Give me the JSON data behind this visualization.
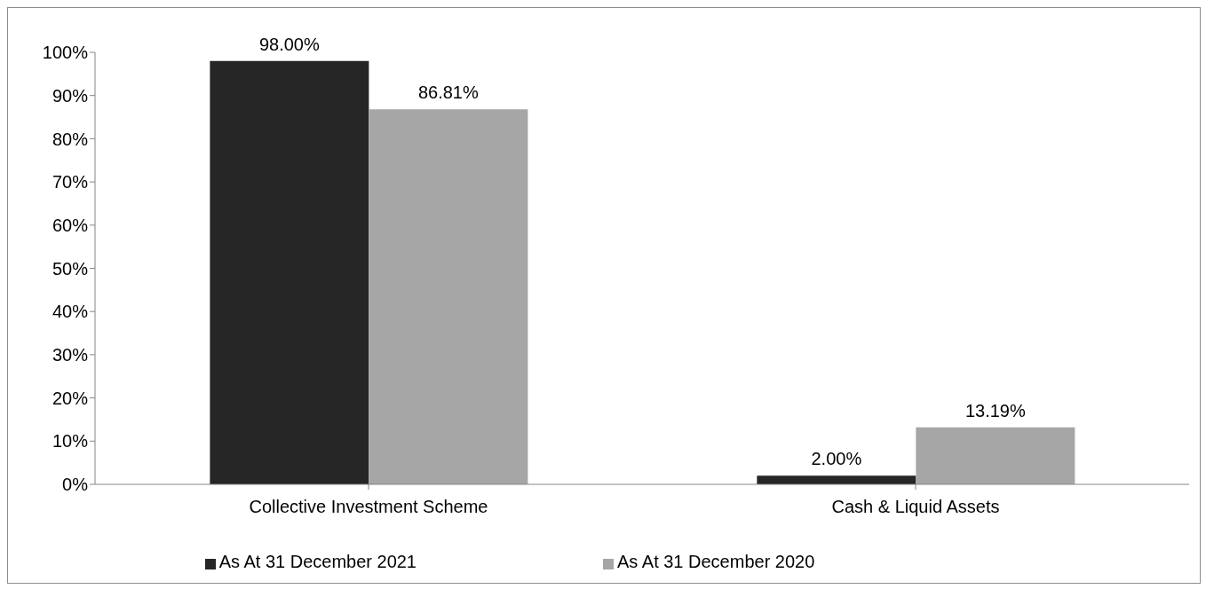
{
  "chart_data": {
    "type": "bar",
    "categories": [
      "Collective Investment Scheme",
      "Cash & Liquid Assets"
    ],
    "series": [
      {
        "name": "As At 31 December 2021",
        "color": "#262626",
        "values": [
          98.0,
          2.0
        ],
        "value_labels": [
          "98.00%",
          "2.00%"
        ]
      },
      {
        "name": "As At 31 December 2020",
        "color": "#a6a6a6",
        "values": [
          86.81,
          13.19
        ],
        "value_labels": [
          "86.81%",
          "13.19%"
        ]
      }
    ],
    "ylim": [
      0,
      100
    ],
    "yticks": [
      {
        "value": 0,
        "label": "0%"
      },
      {
        "value": 10,
        "label": "10%"
      },
      {
        "value": 20,
        "label": "20%"
      },
      {
        "value": 30,
        "label": "30%"
      },
      {
        "value": 40,
        "label": "40%"
      },
      {
        "value": 50,
        "label": "50%"
      },
      {
        "value": 60,
        "label": "60%"
      },
      {
        "value": 70,
        "label": "70%"
      },
      {
        "value": 80,
        "label": "80%"
      },
      {
        "value": 90,
        "label": "90%"
      },
      {
        "value": 100,
        "label": "100%"
      }
    ],
    "grid": false,
    "legend": "bottom"
  }
}
